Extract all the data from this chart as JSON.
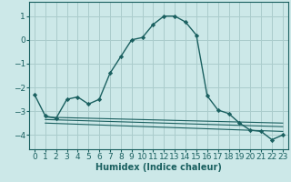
{
  "xlabel": "Humidex (Indice chaleur)",
  "xlim": [
    -0.5,
    23.5
  ],
  "ylim": [
    -4.6,
    1.6
  ],
  "yticks": [
    1,
    0,
    -1,
    -2,
    -3,
    -4
  ],
  "xticks": [
    0,
    1,
    2,
    3,
    4,
    5,
    6,
    7,
    8,
    9,
    10,
    11,
    12,
    13,
    14,
    15,
    16,
    17,
    18,
    19,
    20,
    21,
    22,
    23
  ],
  "bg_color": "#cce8e8",
  "grid_color": "#aacccc",
  "line_color": "#1a6060",
  "main_line_x": [
    0,
    1,
    2,
    3,
    4,
    5,
    6,
    7,
    8,
    9,
    10,
    11,
    12,
    13,
    14,
    15,
    16,
    17,
    18,
    19,
    20,
    21,
    22,
    23
  ],
  "main_line_y": [
    -2.3,
    -3.2,
    -3.3,
    -2.5,
    -2.4,
    -2.7,
    -2.5,
    -1.4,
    -0.7,
    0.0,
    0.1,
    0.65,
    1.0,
    1.0,
    0.75,
    0.2,
    -2.35,
    -2.95,
    -3.1,
    -3.5,
    -3.8,
    -3.85,
    -4.2,
    -4.0
  ],
  "flat_lines": [
    [
      1,
      -3.25,
      23,
      -3.5
    ],
    [
      1,
      -3.35,
      23,
      -3.65
    ],
    [
      1,
      -3.5,
      23,
      -3.85
    ]
  ],
  "xlabel_fontsize": 7,
  "tick_fontsize": 6.5
}
